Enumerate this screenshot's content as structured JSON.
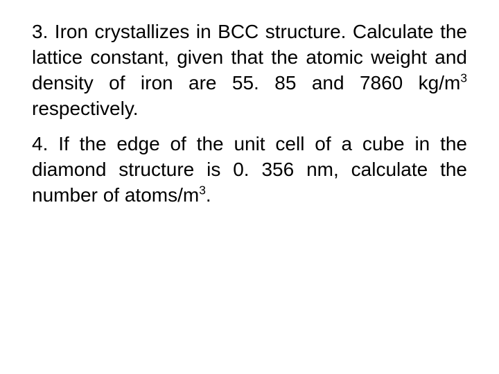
{
  "document": {
    "background_color": "#ffffff",
    "text_color": "#000000",
    "font_family": "Arial",
    "font_size_pt": 21,
    "line_height": 1.32,
    "alignment": "justify",
    "paragraphs": [
      {
        "id": "q3",
        "segments": [
          {
            "text": "3. Iron crystallizes in BCC structure. Calculate the lattice constant, given that the atomic weight and density of iron are 55. 85 and 7860 kg/m"
          },
          {
            "text": "3",
            "sup": true
          },
          {
            "text": " respectively."
          }
        ]
      },
      {
        "id": "q4",
        "segments": [
          {
            "text": "4. If the edge of the unit cell of a cube in the diamond structure is 0. 356 nm, calculate the number of atoms/m"
          },
          {
            "text": "3",
            "sup": true
          },
          {
            "text": "."
          }
        ]
      }
    ]
  }
}
